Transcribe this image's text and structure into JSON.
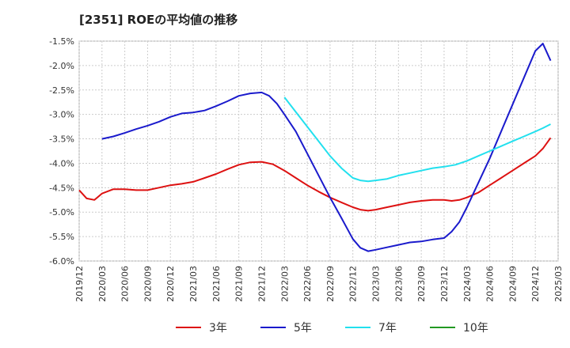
{
  "chart_data": {
    "type": "line",
    "title": "[2351]  ROEの平均値の推移",
    "xlabel": "",
    "ylabel": "",
    "x_ticks": [
      "2019/12",
      "2020/03",
      "2020/06",
      "2020/09",
      "2020/12",
      "2021/03",
      "2021/06",
      "2021/09",
      "2021/12",
      "2022/03",
      "2022/06",
      "2022/09",
      "2022/12",
      "2023/03",
      "2023/06",
      "2023/09",
      "2023/12",
      "2024/03",
      "2024/06",
      "2024/09",
      "2024/12",
      "2025/03"
    ],
    "y_ticks": [
      -1.5,
      -2.0,
      -2.5,
      -3.0,
      -3.5,
      -4.0,
      -4.5,
      -5.0,
      -5.5,
      -6.0
    ],
    "y_tick_labels": [
      "-1.5%",
      "-2.0%",
      "-2.5%",
      "-3.0%",
      "-3.5%",
      "-4.0%",
      "-4.5%",
      "-5.0%",
      "-5.5%",
      "-6.0%"
    ],
    "ylim": [
      -6.0,
      -1.5
    ],
    "grid": true,
    "legend_position": "bottom",
    "series": [
      {
        "name": "3年",
        "color": "#dd1111",
        "points": [
          [
            0,
            -4.55
          ],
          [
            0.33,
            -4.72
          ],
          [
            0.67,
            -4.75
          ],
          [
            1,
            -4.62
          ],
          [
            1.5,
            -4.53
          ],
          [
            2,
            -4.53
          ],
          [
            2.5,
            -4.55
          ],
          [
            3,
            -4.55
          ],
          [
            3.5,
            -4.5
          ],
          [
            4,
            -4.45
          ],
          [
            4.5,
            -4.42
          ],
          [
            5,
            -4.38
          ],
          [
            5.5,
            -4.3
          ],
          [
            6,
            -4.22
          ],
          [
            6.5,
            -4.12
          ],
          [
            7,
            -4.03
          ],
          [
            7.5,
            -3.98
          ],
          [
            8,
            -3.97
          ],
          [
            8.5,
            -4.02
          ],
          [
            9,
            -4.15
          ],
          [
            9.5,
            -4.3
          ],
          [
            10,
            -4.45
          ],
          [
            10.5,
            -4.58
          ],
          [
            11,
            -4.7
          ],
          [
            11.5,
            -4.8
          ],
          [
            12,
            -4.9
          ],
          [
            12.33,
            -4.95
          ],
          [
            12.67,
            -4.97
          ],
          [
            13,
            -4.95
          ],
          [
            13.5,
            -4.9
          ],
          [
            14,
            -4.85
          ],
          [
            14.5,
            -4.8
          ],
          [
            15,
            -4.77
          ],
          [
            15.5,
            -4.75
          ],
          [
            16,
            -4.75
          ],
          [
            16.33,
            -4.77
          ],
          [
            16.67,
            -4.75
          ],
          [
            17,
            -4.7
          ],
          [
            17.5,
            -4.6
          ],
          [
            18,
            -4.45
          ],
          [
            18.5,
            -4.3
          ],
          [
            19,
            -4.15
          ],
          [
            19.5,
            -4.0
          ],
          [
            20,
            -3.85
          ],
          [
            20.33,
            -3.7
          ],
          [
            20.67,
            -3.48
          ]
        ]
      },
      {
        "name": "5年",
        "color": "#1a1acc",
        "points": [
          [
            1,
            -3.5
          ],
          [
            1.5,
            -3.45
          ],
          [
            2,
            -3.38
          ],
          [
            2.5,
            -3.3
          ],
          [
            3,
            -3.23
          ],
          [
            3.5,
            -3.15
          ],
          [
            4,
            -3.05
          ],
          [
            4.5,
            -2.98
          ],
          [
            5,
            -2.96
          ],
          [
            5.5,
            -2.92
          ],
          [
            6,
            -2.83
          ],
          [
            6.5,
            -2.73
          ],
          [
            7,
            -2.62
          ],
          [
            7.5,
            -2.57
          ],
          [
            8,
            -2.55
          ],
          [
            8.33,
            -2.62
          ],
          [
            8.67,
            -2.78
          ],
          [
            9,
            -3.0
          ],
          [
            9.5,
            -3.35
          ],
          [
            10,
            -3.8
          ],
          [
            10.5,
            -4.25
          ],
          [
            11,
            -4.7
          ],
          [
            11.5,
            -5.12
          ],
          [
            12,
            -5.55
          ],
          [
            12.33,
            -5.73
          ],
          [
            12.67,
            -5.8
          ],
          [
            13,
            -5.77
          ],
          [
            13.5,
            -5.72
          ],
          [
            14,
            -5.67
          ],
          [
            14.5,
            -5.62
          ],
          [
            15,
            -5.6
          ],
          [
            15.5,
            -5.56
          ],
          [
            16,
            -5.53
          ],
          [
            16.33,
            -5.4
          ],
          [
            16.67,
            -5.2
          ],
          [
            17,
            -4.9
          ],
          [
            17.5,
            -4.4
          ],
          [
            18,
            -3.9
          ],
          [
            18.5,
            -3.35
          ],
          [
            19,
            -2.8
          ],
          [
            19.5,
            -2.25
          ],
          [
            20,
            -1.7
          ],
          [
            20.33,
            -1.55
          ],
          [
            20.67,
            -1.9
          ]
        ]
      },
      {
        "name": "7年",
        "color": "#22e0ee",
        "points": [
          [
            9,
            -2.65
          ],
          [
            9.5,
            -2.95
          ],
          [
            10,
            -3.25
          ],
          [
            10.5,
            -3.55
          ],
          [
            11,
            -3.85
          ],
          [
            11.5,
            -4.1
          ],
          [
            12,
            -4.3
          ],
          [
            12.33,
            -4.35
          ],
          [
            12.67,
            -4.37
          ],
          [
            13,
            -4.35
          ],
          [
            13.5,
            -4.32
          ],
          [
            14,
            -4.25
          ],
          [
            14.5,
            -4.2
          ],
          [
            15,
            -4.15
          ],
          [
            15.5,
            -4.1
          ],
          [
            16,
            -4.07
          ],
          [
            16.5,
            -4.03
          ],
          [
            17,
            -3.95
          ],
          [
            17.5,
            -3.85
          ],
          [
            18,
            -3.75
          ],
          [
            18.5,
            -3.65
          ],
          [
            19,
            -3.55
          ],
          [
            19.5,
            -3.45
          ],
          [
            20,
            -3.35
          ],
          [
            20.33,
            -3.28
          ],
          [
            20.67,
            -3.2
          ]
        ]
      },
      {
        "name": "10年",
        "color": "#229922",
        "points": []
      }
    ]
  }
}
